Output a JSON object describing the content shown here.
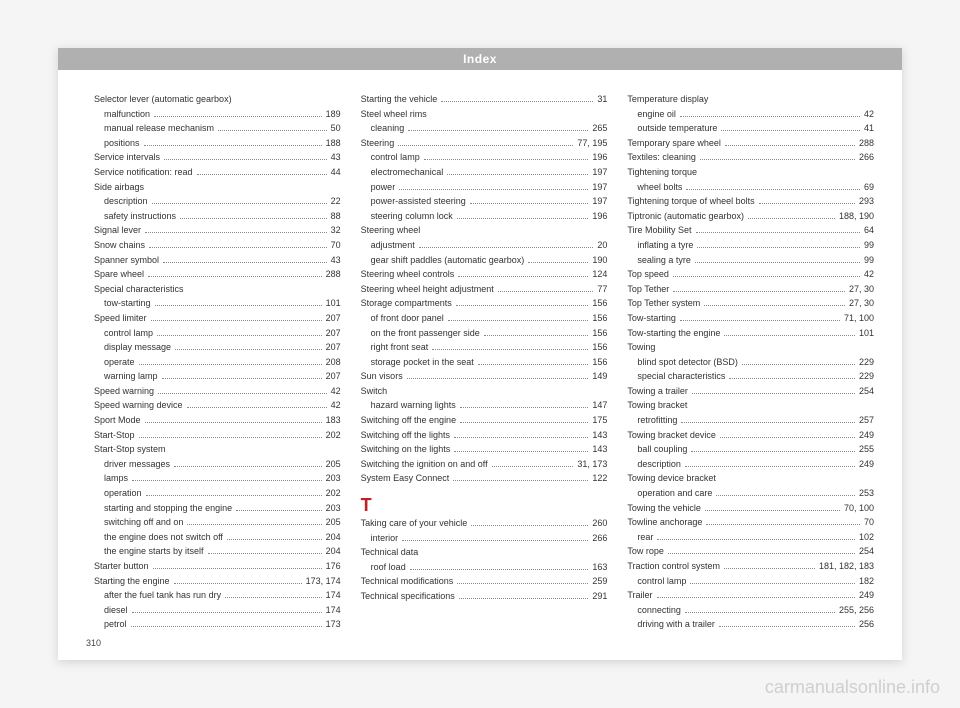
{
  "header": {
    "title": "Index"
  },
  "pageNumber": "310",
  "watermark": "carmanualsonline.info",
  "colors": {
    "pageBg": "#ffffff",
    "bodyBg": "#f5f5f5",
    "headerBar": "#b0b0b0",
    "sectionLetter": "#c02020",
    "text": "#333333",
    "watermark": "#cfcfcf"
  },
  "columns": [
    [
      {
        "t": "h",
        "label": "Selector lever (automatic gearbox)"
      },
      {
        "t": "s",
        "label": "malfunction",
        "pg": "189"
      },
      {
        "t": "s",
        "label": "manual release mechanism",
        "pg": "50"
      },
      {
        "t": "s",
        "label": "positions",
        "pg": "188"
      },
      {
        "t": "e",
        "label": "Service intervals",
        "pg": "43"
      },
      {
        "t": "e",
        "label": "Service notification: read",
        "pg": "44"
      },
      {
        "t": "h",
        "label": "Side airbags"
      },
      {
        "t": "s",
        "label": "description",
        "pg": "22"
      },
      {
        "t": "s",
        "label": "safety instructions",
        "pg": "88"
      },
      {
        "t": "e",
        "label": "Signal lever",
        "pg": "32"
      },
      {
        "t": "e",
        "label": "Snow chains",
        "pg": "70"
      },
      {
        "t": "e",
        "label": "Spanner symbol",
        "pg": "43"
      },
      {
        "t": "e",
        "label": "Spare wheel",
        "pg": "288"
      },
      {
        "t": "h",
        "label": "Special characteristics"
      },
      {
        "t": "s",
        "label": "tow-starting",
        "pg": "101"
      },
      {
        "t": "e",
        "label": "Speed limiter",
        "pg": "207"
      },
      {
        "t": "s",
        "label": "control lamp",
        "pg": "207"
      },
      {
        "t": "s",
        "label": "display message",
        "pg": "207"
      },
      {
        "t": "s",
        "label": "operate",
        "pg": "208"
      },
      {
        "t": "s",
        "label": "warning lamp",
        "pg": "207"
      },
      {
        "t": "e",
        "label": "Speed warning",
        "pg": "42"
      },
      {
        "t": "e",
        "label": "Speed warning device",
        "pg": "42"
      },
      {
        "t": "e",
        "label": "Sport Mode",
        "pg": "183"
      },
      {
        "t": "e",
        "label": "Start-Stop",
        "pg": "202"
      },
      {
        "t": "h",
        "label": "Start-Stop system"
      },
      {
        "t": "s",
        "label": "driver messages",
        "pg": "205"
      },
      {
        "t": "s",
        "label": "lamps",
        "pg": "203"
      },
      {
        "t": "s",
        "label": "operation",
        "pg": "202"
      },
      {
        "t": "s",
        "label": "starting and stopping the engine",
        "pg": "203"
      },
      {
        "t": "s",
        "label": "switching off and on",
        "pg": "205"
      },
      {
        "t": "s",
        "label": "the engine does not switch off",
        "pg": "204"
      },
      {
        "t": "s",
        "label": "the engine starts by itself",
        "pg": "204"
      },
      {
        "t": "e",
        "label": "Starter button",
        "pg": "176"
      },
      {
        "t": "e",
        "label": "Starting the engine",
        "pg": "173, 174"
      },
      {
        "t": "s",
        "label": "after the fuel tank has run dry",
        "pg": "174"
      },
      {
        "t": "s",
        "label": "diesel",
        "pg": "174"
      },
      {
        "t": "s",
        "label": "petrol",
        "pg": "173"
      }
    ],
    [
      {
        "t": "e",
        "label": "Starting the vehicle",
        "pg": "31"
      },
      {
        "t": "h",
        "label": "Steel wheel rims"
      },
      {
        "t": "s",
        "label": "cleaning",
        "pg": "265"
      },
      {
        "t": "e",
        "label": "Steering",
        "pg": "77, 195"
      },
      {
        "t": "s",
        "label": "control lamp",
        "pg": "196"
      },
      {
        "t": "s",
        "label": "electromechanical",
        "pg": "197"
      },
      {
        "t": "s",
        "label": "power",
        "pg": "197"
      },
      {
        "t": "s",
        "label": "power-assisted steering",
        "pg": "197"
      },
      {
        "t": "s",
        "label": "steering column lock",
        "pg": "196"
      },
      {
        "t": "h",
        "label": "Steering wheel"
      },
      {
        "t": "s",
        "label": "adjustment",
        "pg": "20"
      },
      {
        "t": "s",
        "label": "gear shift paddles (automatic gearbox)",
        "pg": "190"
      },
      {
        "t": "e",
        "label": "Steering wheel controls",
        "pg": "124"
      },
      {
        "t": "e",
        "label": "Steering wheel height adjustment",
        "pg": "77"
      },
      {
        "t": "e",
        "label": "Storage compartments",
        "pg": "156"
      },
      {
        "t": "s",
        "label": "of front door panel",
        "pg": "156"
      },
      {
        "t": "s",
        "label": "on the front passenger side",
        "pg": "156"
      },
      {
        "t": "s",
        "label": "right front seat",
        "pg": "156"
      },
      {
        "t": "s",
        "label": "storage pocket in the seat",
        "pg": "156"
      },
      {
        "t": "e",
        "label": "Sun visors",
        "pg": "149"
      },
      {
        "t": "h",
        "label": "Switch"
      },
      {
        "t": "s",
        "label": "hazard warning lights",
        "pg": "147"
      },
      {
        "t": "e",
        "label": "Switching off the engine",
        "pg": "175"
      },
      {
        "t": "e",
        "label": "Switching off the lights",
        "pg": "143"
      },
      {
        "t": "e",
        "label": "Switching on the lights",
        "pg": "143"
      },
      {
        "t": "e",
        "label": "Switching the ignition on and off",
        "pg": "31, 173"
      },
      {
        "t": "e",
        "label": "System Easy Connect",
        "pg": "122"
      },
      {
        "t": "L",
        "label": "T"
      },
      {
        "t": "e",
        "label": "Taking care of your vehicle",
        "pg": "260"
      },
      {
        "t": "s",
        "label": "interior",
        "pg": "266"
      },
      {
        "t": "h",
        "label": "Technical data"
      },
      {
        "t": "s",
        "label": "roof load",
        "pg": "163"
      },
      {
        "t": "e",
        "label": "Technical modifications",
        "pg": "259"
      },
      {
        "t": "e",
        "label": "Technical specifications",
        "pg": "291"
      }
    ],
    [
      {
        "t": "h",
        "label": "Temperature display"
      },
      {
        "t": "s",
        "label": "engine oil",
        "pg": "42"
      },
      {
        "t": "s",
        "label": "outside temperature",
        "pg": "41"
      },
      {
        "t": "e",
        "label": "Temporary spare wheel",
        "pg": "288"
      },
      {
        "t": "e",
        "label": "Textiles: cleaning",
        "pg": "266"
      },
      {
        "t": "h",
        "label": "Tightening torque"
      },
      {
        "t": "s",
        "label": "wheel bolts",
        "pg": "69"
      },
      {
        "t": "e",
        "label": "Tightening torque of wheel bolts",
        "pg": "293"
      },
      {
        "t": "e",
        "label": "Tiptronic (automatic gearbox)",
        "pg": "188, 190"
      },
      {
        "t": "e",
        "label": "Tire Mobility Set",
        "pg": "64"
      },
      {
        "t": "s",
        "label": "inflating a tyre",
        "pg": "99"
      },
      {
        "t": "s",
        "label": "sealing a tyre",
        "pg": "99"
      },
      {
        "t": "e",
        "label": "Top speed",
        "pg": "42"
      },
      {
        "t": "e",
        "label": "Top Tether",
        "pg": "27, 30"
      },
      {
        "t": "e",
        "label": "Top Tether system",
        "pg": "27, 30"
      },
      {
        "t": "e",
        "label": "Tow-starting",
        "pg": "71, 100"
      },
      {
        "t": "e",
        "label": "Tow-starting the engine",
        "pg": "101"
      },
      {
        "t": "h",
        "label": "Towing"
      },
      {
        "t": "s",
        "label": "blind spot detector (BSD)",
        "pg": "229"
      },
      {
        "t": "s",
        "label": "special characteristics",
        "pg": "229"
      },
      {
        "t": "e",
        "label": "Towing a trailer",
        "pg": "254"
      },
      {
        "t": "h",
        "label": "Towing bracket"
      },
      {
        "t": "s",
        "label": "retrofitting",
        "pg": "257"
      },
      {
        "t": "e",
        "label": "Towing bracket device",
        "pg": "249"
      },
      {
        "t": "s",
        "label": "ball coupling",
        "pg": "255"
      },
      {
        "t": "s",
        "label": "description",
        "pg": "249"
      },
      {
        "t": "h",
        "label": "Towing device bracket"
      },
      {
        "t": "s",
        "label": "operation and care",
        "pg": "253"
      },
      {
        "t": "e",
        "label": "Towing the vehicle",
        "pg": "70, 100"
      },
      {
        "t": "e",
        "label": "Towline anchorage",
        "pg": "70"
      },
      {
        "t": "s",
        "label": "rear",
        "pg": "102"
      },
      {
        "t": "e",
        "label": "Tow rope",
        "pg": "254"
      },
      {
        "t": "e",
        "label": "Traction control system",
        "pg": "181, 182, 183"
      },
      {
        "t": "s",
        "label": "control lamp",
        "pg": "182"
      },
      {
        "t": "e",
        "label": "Trailer",
        "pg": "249"
      },
      {
        "t": "s",
        "label": "connecting",
        "pg": "255, 256"
      },
      {
        "t": "s",
        "label": "driving with a trailer",
        "pg": "256"
      }
    ]
  ]
}
